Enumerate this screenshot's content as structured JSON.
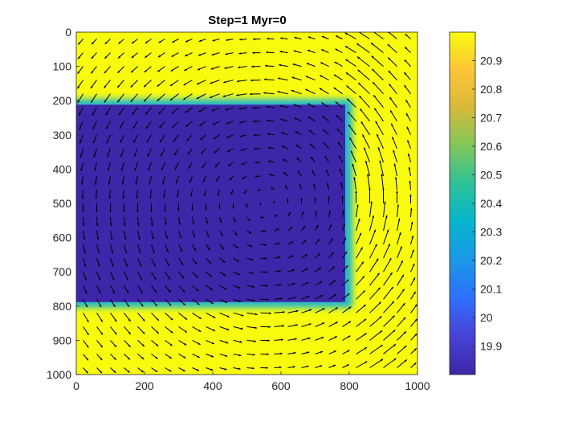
{
  "chart_data": {
    "type": "heatmap",
    "title": "Step=1 Myr=0",
    "xlim": [
      0,
      1000
    ],
    "ylim": [
      0,
      1000
    ],
    "y_reversed": true,
    "x_ticks": [
      0,
      200,
      400,
      600,
      800,
      1000
    ],
    "y_ticks": [
      0,
      100,
      200,
      300,
      400,
      500,
      600,
      700,
      800,
      900,
      1000
    ],
    "x_tick_labels": [
      "0",
      "200",
      "400",
      "600",
      "800",
      "1000"
    ],
    "y_tick_labels": [
      "0",
      "100",
      "200",
      "300",
      "400",
      "500",
      "600",
      "700",
      "800",
      "900",
      "1000"
    ],
    "field": {
      "background_value": 21.0,
      "block_value": 19.8,
      "block_region": {
        "x": [
          0,
          800
        ],
        "y": [
          200,
          800
        ]
      }
    },
    "colorbar": {
      "colormap": "parula",
      "range": [
        19.8,
        21.0
      ],
      "ticks": [
        19.9,
        20,
        20.1,
        20.2,
        20.3,
        20.4,
        20.5,
        20.6,
        20.7,
        20.8,
        20.9
      ],
      "tick_labels": [
        "19.9",
        "20",
        "20.1",
        "20.2",
        "20.3",
        "20.4",
        "20.5",
        "20.6",
        "20.7",
        "20.8",
        "20.9"
      ]
    },
    "vector_field": {
      "type": "quiver",
      "grid_spacing": 40,
      "vortex_center": [
        550,
        500
      ],
      "rotation": "counter-clockwise",
      "arrow_color": "#000000"
    },
    "colors": {
      "high": "#F9FB0E",
      "low": "#3E26A8",
      "arrow": "#000000"
    }
  }
}
